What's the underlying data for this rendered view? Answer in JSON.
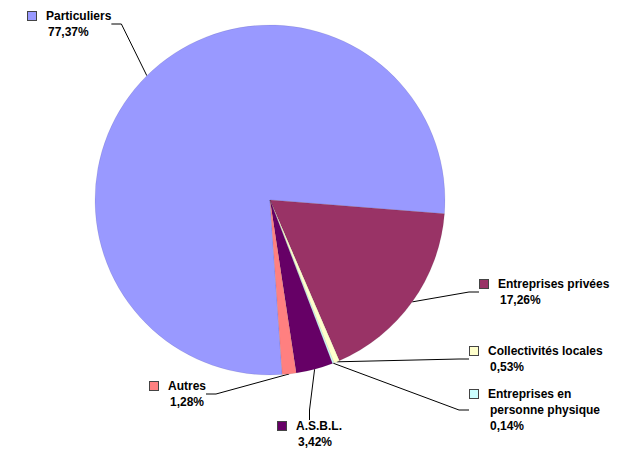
{
  "chart_data": {
    "type": "pie",
    "categories": [
      "Particuliers",
      "Entreprises privées",
      "Collectivités locales",
      "Entreprises en personne physique",
      "A.S.B.L.",
      "Autres"
    ],
    "values": [
      77.37,
      17.26,
      0.53,
      0.14,
      3.42,
      1.28
    ],
    "value_labels": [
      "77,37%",
      "17,26%",
      "0,53%",
      "0,14%",
      "3,42%",
      "1,28%"
    ],
    "colors": [
      "#9999ff",
      "#993366",
      "#ffffcc",
      "#ccffff",
      "#660066",
      "#ff8080"
    ],
    "data_labels": true
  }
}
